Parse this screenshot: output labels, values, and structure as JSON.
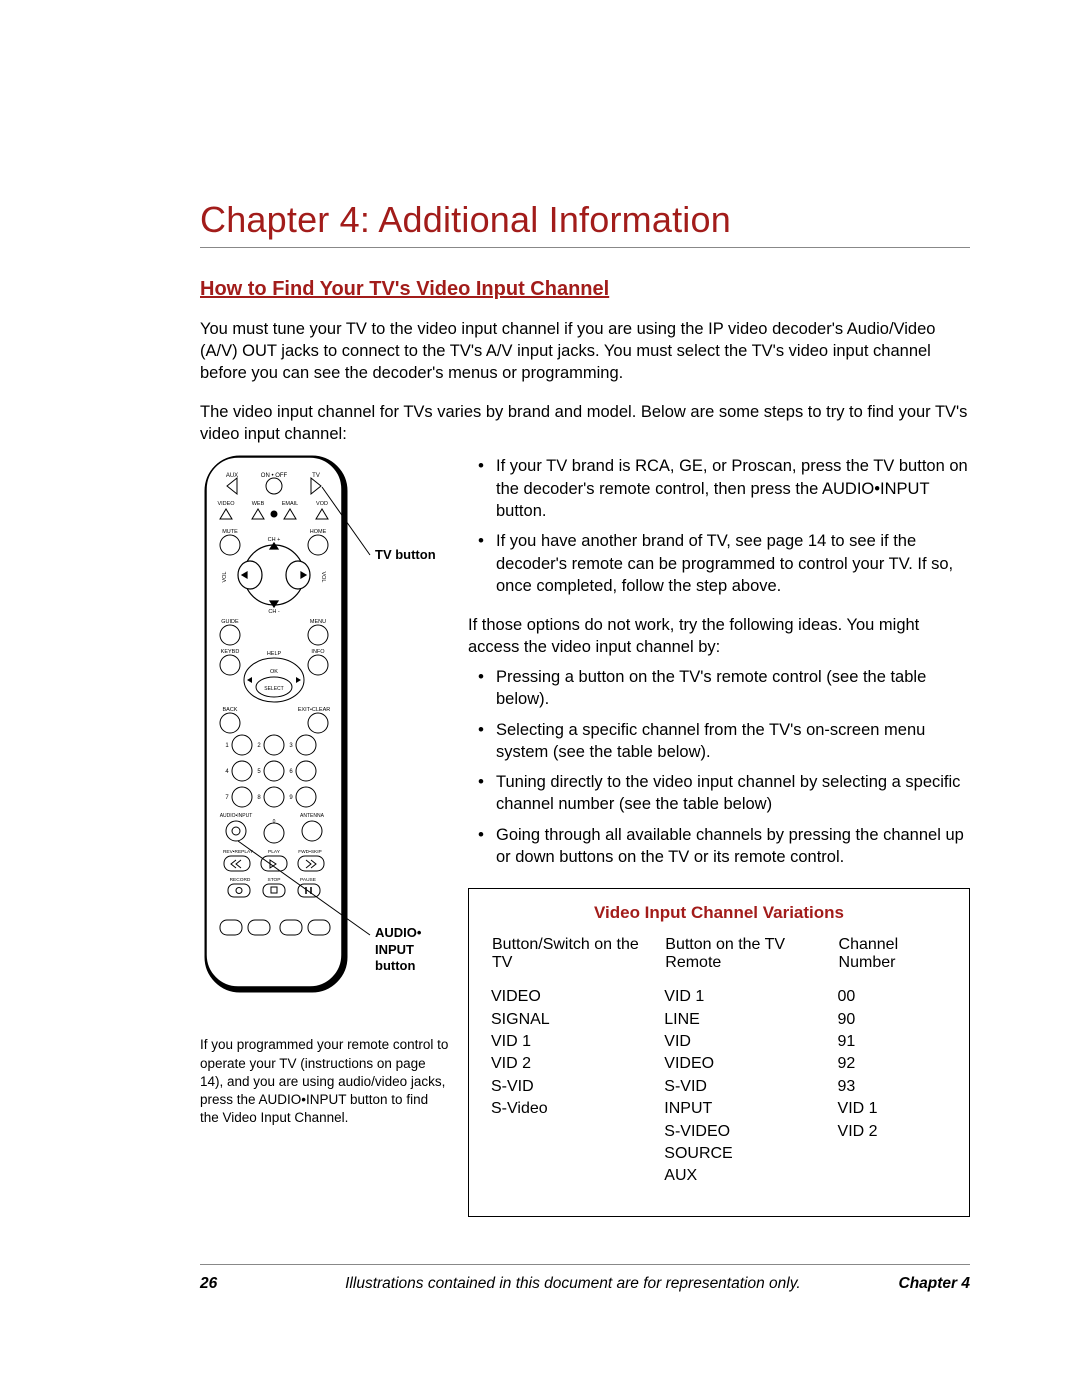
{
  "accent_color": "#a21c1a",
  "chapter_title": "Chapter 4: Additional Information",
  "section_title": "How to Find Your TV's Video Input Channel",
  "intro_paragraphs": [
    "You must tune your TV to the video input channel if you are using the IP video decoder's Audio/Video (A/V) OUT jacks to connect to the TV's A/V input jacks. You must select the TV's video input channel before you can see the decoder's menus or programming.",
    "The video input channel for TVs varies by brand and model. Below are some steps to try to find your TV's video input channel:"
  ],
  "right_bullets_top": [
    "If your TV brand is RCA, GE, or Proscan, press the TV button on the decoder's remote control, then press the AUDIO•INPUT button.",
    "If you have another brand of TV, see page 14 to see if the decoder's remote can be programmed to control your TV. If so, once completed, follow the step above."
  ],
  "right_mid_text": "If those options do not work, try the following ideas. You might access the video input channel by:",
  "right_bullets_bottom": [
    "Pressing a button on the TV's remote control (see the table below).",
    "Selecting a specific channel from the TV's on-screen menu system (see the table below).",
    "Tuning directly to the video input channel by selecting a specific channel number (see the table below)",
    "Going through all available channels by pressing the channel up or down buttons on the TV or its remote control."
  ],
  "variations": {
    "title": "Video Input Channel Variations",
    "headers": [
      "Button/Switch on the TV",
      "Button on the TV Remote",
      "Channel Number"
    ],
    "col1": [
      "VIDEO",
      "SIGNAL",
      "VID 1",
      "VID 2",
      "S-VID",
      "S-Video"
    ],
    "col2": [
      "VID 1",
      "LINE",
      "VID",
      "VIDEO",
      "S-VID",
      "INPUT",
      "S-VIDEO",
      "SOURCE",
      "AUX"
    ],
    "col3": [
      "00",
      "90",
      "91",
      "92",
      "93",
      "VID 1",
      "VID 2"
    ]
  },
  "remote_caption": "If you programmed your remote control to operate your TV (instructions on page 14), and you are using audio/video jacks, press the AUDIO•INPUT button to find the Video Input Channel.",
  "callouts": {
    "tv_button": "TV button",
    "audio_input": "AUDIO• INPUT button"
  },
  "remote_labels": {
    "row1": [
      "AUX",
      "ON • OFF",
      "TV"
    ],
    "row2": [
      "VIDEO",
      "WEB",
      "EMAIL",
      "VOD"
    ],
    "mute": "MUTE",
    "home": "HOME",
    "chplus": "CH +",
    "chminus": "CH -",
    "vol": "VOL",
    "guide": "GUIDE",
    "menu": "MENU",
    "keybd": "KEYBD",
    "info": "INFO",
    "help": "HELP",
    "ok": "OK",
    "select": "SELECT",
    "back": "BACK",
    "exit": "EXIT•CLEAR",
    "audio_input": "AUDIO•INPUT",
    "antenna": "ANTENNA",
    "rev": "REV•REPLAY",
    "play": "PLAY",
    "fwd": "FWD•SKIP",
    "record": "RECORD",
    "stop": "STOP",
    "pause": "PAUSE"
  },
  "footer": {
    "page": "26",
    "mid": "Illustrations contained in this document are for representation only.",
    "right": "Chapter 4"
  }
}
